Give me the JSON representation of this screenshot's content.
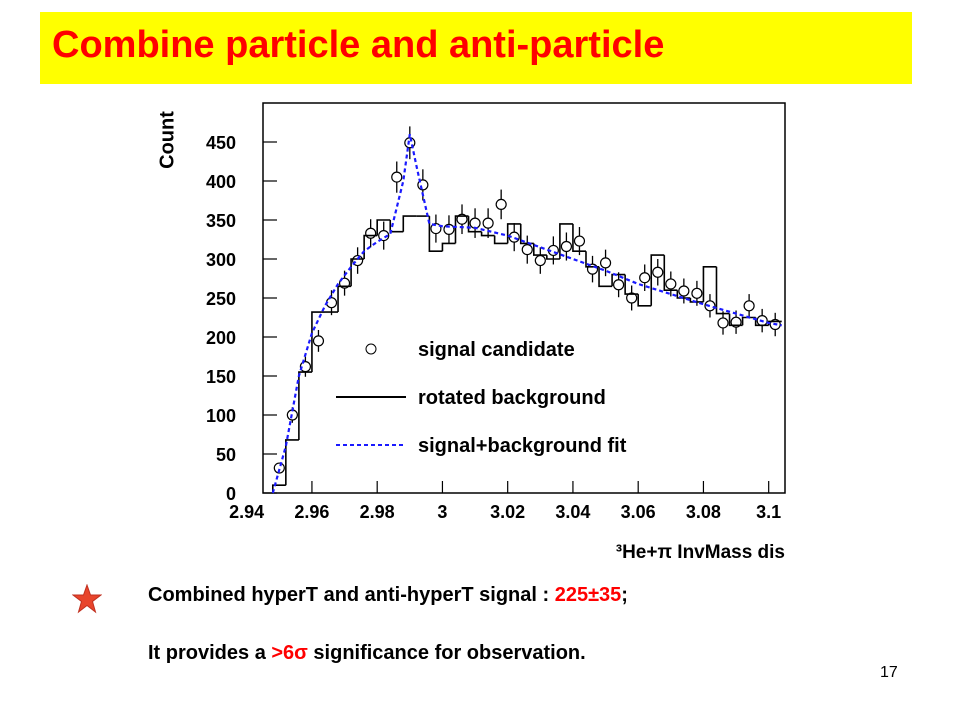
{
  "title": "Combine particle and anti-particle",
  "chart_data": {
    "type": "scatter",
    "y_label": "Count",
    "x_label": "³He+π InvMass dis",
    "xlim": [
      2.945,
      3.105
    ],
    "ylim": [
      0,
      500
    ],
    "xticks": [
      2.94,
      2.96,
      2.98,
      3,
      3.02,
      3.04,
      3.06,
      3.08,
      3.1
    ],
    "yticks": [
      0,
      50,
      100,
      150,
      200,
      250,
      300,
      350,
      400,
      450
    ],
    "series": [
      {
        "name": "signal candidate",
        "type": "scatter",
        "color": "#000000",
        "x": [
          2.95,
          2.954,
          2.958,
          2.962,
          2.966,
          2.97,
          2.974,
          2.978,
          2.982,
          2.986,
          2.99,
          2.994,
          2.998,
          3.002,
          3.006,
          3.01,
          3.014,
          3.018,
          3.022,
          3.026,
          3.03,
          3.034,
          3.038,
          3.042,
          3.046,
          3.05,
          3.054,
          3.058,
          3.062,
          3.066,
          3.07,
          3.074,
          3.078,
          3.082,
          3.086,
          3.09,
          3.094,
          3.098,
          3.102
        ],
        "values": [
          32,
          100,
          162,
          195,
          244,
          269,
          298,
          333,
          330,
          405,
          449,
          395,
          339,
          338,
          351,
          346,
          346,
          370,
          328,
          312,
          298,
          311,
          316,
          323,
          287,
          295,
          267,
          250,
          276,
          283,
          268,
          259,
          256,
          240,
          218,
          219,
          240,
          221,
          216
        ],
        "errors": [
          6,
          10,
          13,
          14,
          16,
          16,
          17,
          18,
          18,
          20,
          21,
          20,
          18,
          18,
          19,
          19,
          19,
          19,
          18,
          18,
          17,
          18,
          18,
          18,
          17,
          17,
          16,
          16,
          17,
          17,
          16,
          16,
          16,
          15,
          15,
          15,
          15,
          15,
          15
        ]
      },
      {
        "name": "rotated background",
        "type": "step",
        "color": "#000000",
        "x": [
          2.95,
          2.954,
          2.958,
          2.962,
          2.966,
          2.97,
          2.974,
          2.978,
          2.982,
          2.986,
          2.99,
          2.994,
          2.998,
          3.002,
          3.006,
          3.01,
          3.014,
          3.018,
          3.022,
          3.026,
          3.03,
          3.034,
          3.038,
          3.042,
          3.046,
          3.05,
          3.054,
          3.058,
          3.062,
          3.066,
          3.07,
          3.074,
          3.078,
          3.082,
          3.086,
          3.09,
          3.094,
          3.098,
          3.102
        ],
        "values": [
          10,
          68,
          155,
          232,
          232,
          265,
          300,
          330,
          350,
          335,
          355,
          355,
          310,
          320,
          355,
          335,
          330,
          320,
          345,
          320,
          305,
          300,
          345,
          310,
          290,
          265,
          280,
          255,
          240,
          305,
          260,
          250,
          245,
          290,
          230,
          215,
          225,
          215,
          220
        ]
      },
      {
        "name": "signal+background fit",
        "type": "line",
        "color": "#1a1aff",
        "x": [
          2.948,
          2.952,
          2.956,
          2.96,
          2.964,
          2.968,
          2.972,
          2.976,
          2.98,
          2.984,
          2.988,
          2.99,
          2.992,
          2.996,
          3,
          3.01,
          3.02,
          3.03,
          3.04,
          3.05,
          3.06,
          3.07,
          3.08,
          3.09,
          3.1,
          3.104
        ],
        "values": [
          0,
          60,
          150,
          205,
          240,
          268,
          290,
          310,
          322,
          332,
          400,
          460,
          420,
          345,
          342,
          340,
          330,
          315,
          300,
          285,
          268,
          255,
          242,
          230,
          218,
          215
        ]
      }
    ]
  },
  "bullets": [
    {
      "parts": [
        "Combined hyperT and anti-hyperT signal : ",
        "225±35",
        ";"
      ]
    },
    {
      "parts": [
        "It provides a ",
        ">6σ",
        " significance for observation."
      ]
    }
  ],
  "page_number": "17"
}
